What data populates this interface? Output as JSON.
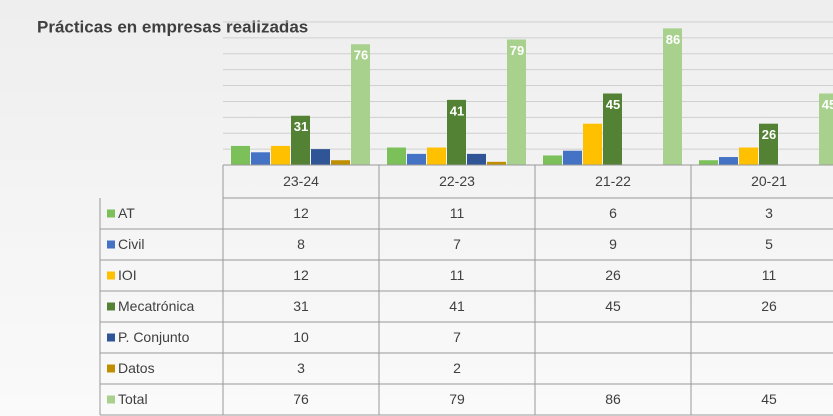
{
  "chart_data": {
    "type": "bar",
    "title": "Prácticas en empresas realizadas",
    "categories": [
      "23-24",
      "22-23",
      "21-22",
      "20-21"
    ],
    "series": [
      {
        "name": "AT",
        "color": "#7cc05a",
        "values": [
          12,
          11,
          6,
          3
        ]
      },
      {
        "name": "Civil",
        "color": "#4472c4",
        "values": [
          8,
          7,
          9,
          5
        ]
      },
      {
        "name": "IOI",
        "color": "#ffc000",
        "values": [
          12,
          11,
          26,
          11
        ]
      },
      {
        "name": "Mecatrónica",
        "color": "#548235",
        "values": [
          31,
          41,
          45,
          26
        ],
        "labels": true
      },
      {
        "name": "P. Conjunto",
        "color": "#2f5597",
        "values": [
          10,
          7,
          null,
          null
        ]
      },
      {
        "name": "Datos",
        "color": "#bf8f00",
        "values": [
          3,
          2,
          null,
          null
        ]
      },
      {
        "name": "Total",
        "color": "#a9d18e",
        "values": [
          76,
          79,
          86,
          45
        ],
        "labels": true
      }
    ],
    "ylim": [
      0,
      90
    ],
    "yticks": [
      0,
      10,
      20,
      30,
      40,
      50,
      60,
      70,
      80,
      90
    ],
    "grid": true,
    "data_table": true
  }
}
